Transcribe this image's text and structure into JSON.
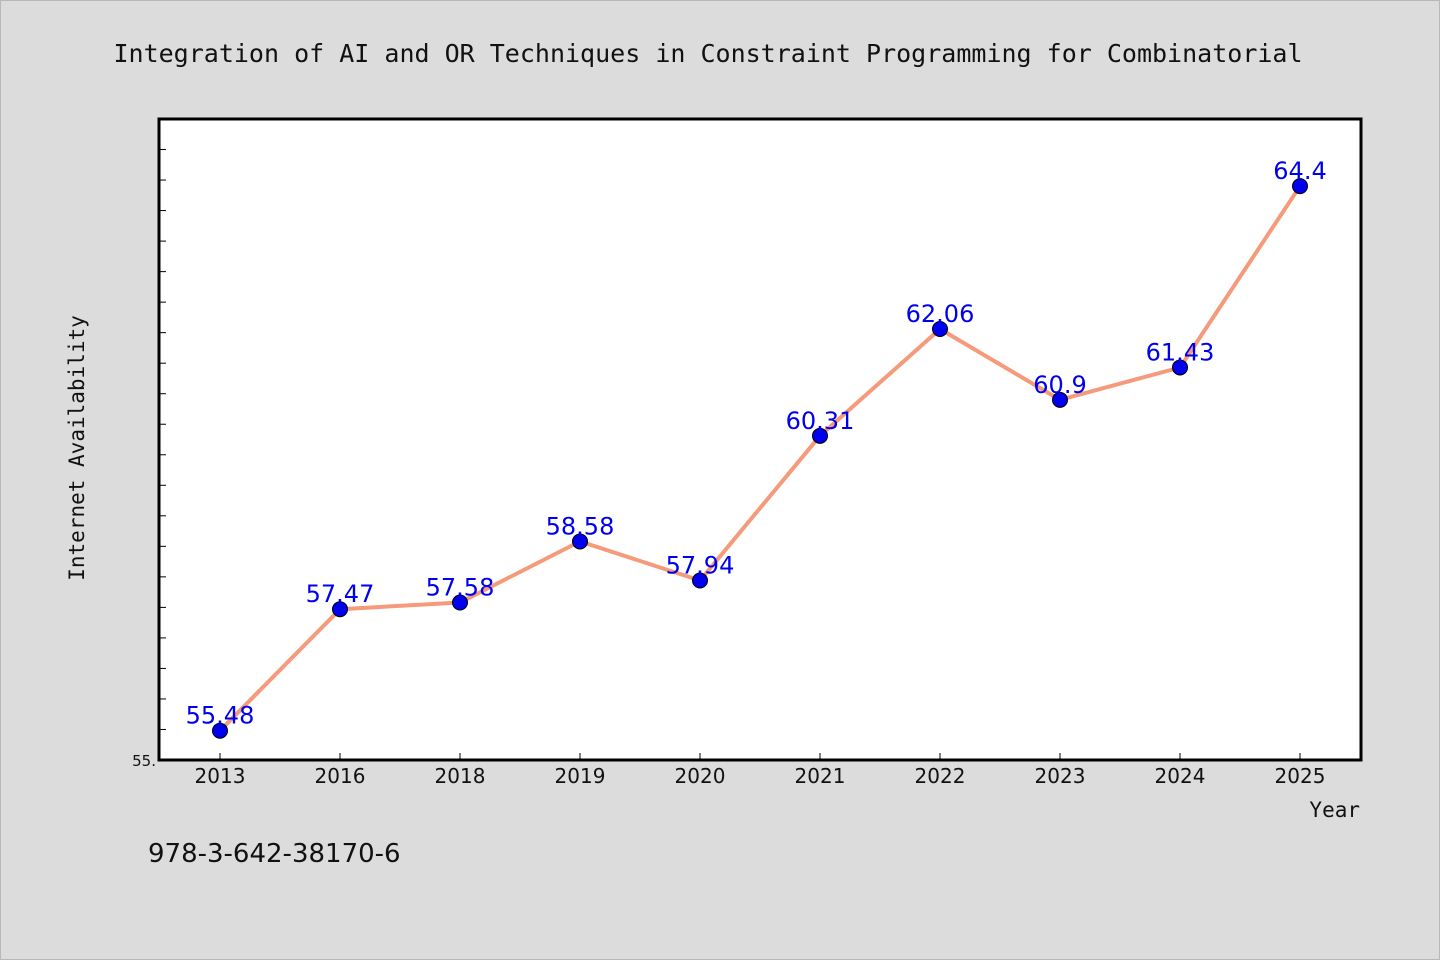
{
  "colors": {
    "background": "#dcdcdc",
    "plot_background": "#ffffff",
    "line": "#f59a7a",
    "marker": "#0000ee",
    "data_label": "#0000ee"
  },
  "isbn": "978-3-642-38170-6",
  "chart_data": {
    "type": "line",
    "title": "Integration of AI and OR Techniques in Constraint Programming for Combinatorial",
    "xlabel": "Year",
    "ylabel": "Internet Availability",
    "categories": [
      "2013",
      "2016",
      "2018",
      "2019",
      "2020",
      "2021",
      "2022",
      "2023",
      "2024",
      "2025"
    ],
    "series": [
      {
        "values": [
          55.48,
          57.47,
          57.58,
          58.58,
          57.94,
          60.31,
          62.06,
          60.9,
          61.43,
          64.4
        ],
        "labels": [
          "55.48",
          "57.47",
          "57.58",
          "58.58",
          "57.94",
          "60.31",
          "62.06",
          "60.9",
          "61.43",
          "64.4"
        ]
      }
    ],
    "y_tick_label": "55.",
    "ylim": [
      55.0,
      65.5
    ],
    "y_minor_tick_step": 0.5,
    "grid": false,
    "legend": "none"
  }
}
